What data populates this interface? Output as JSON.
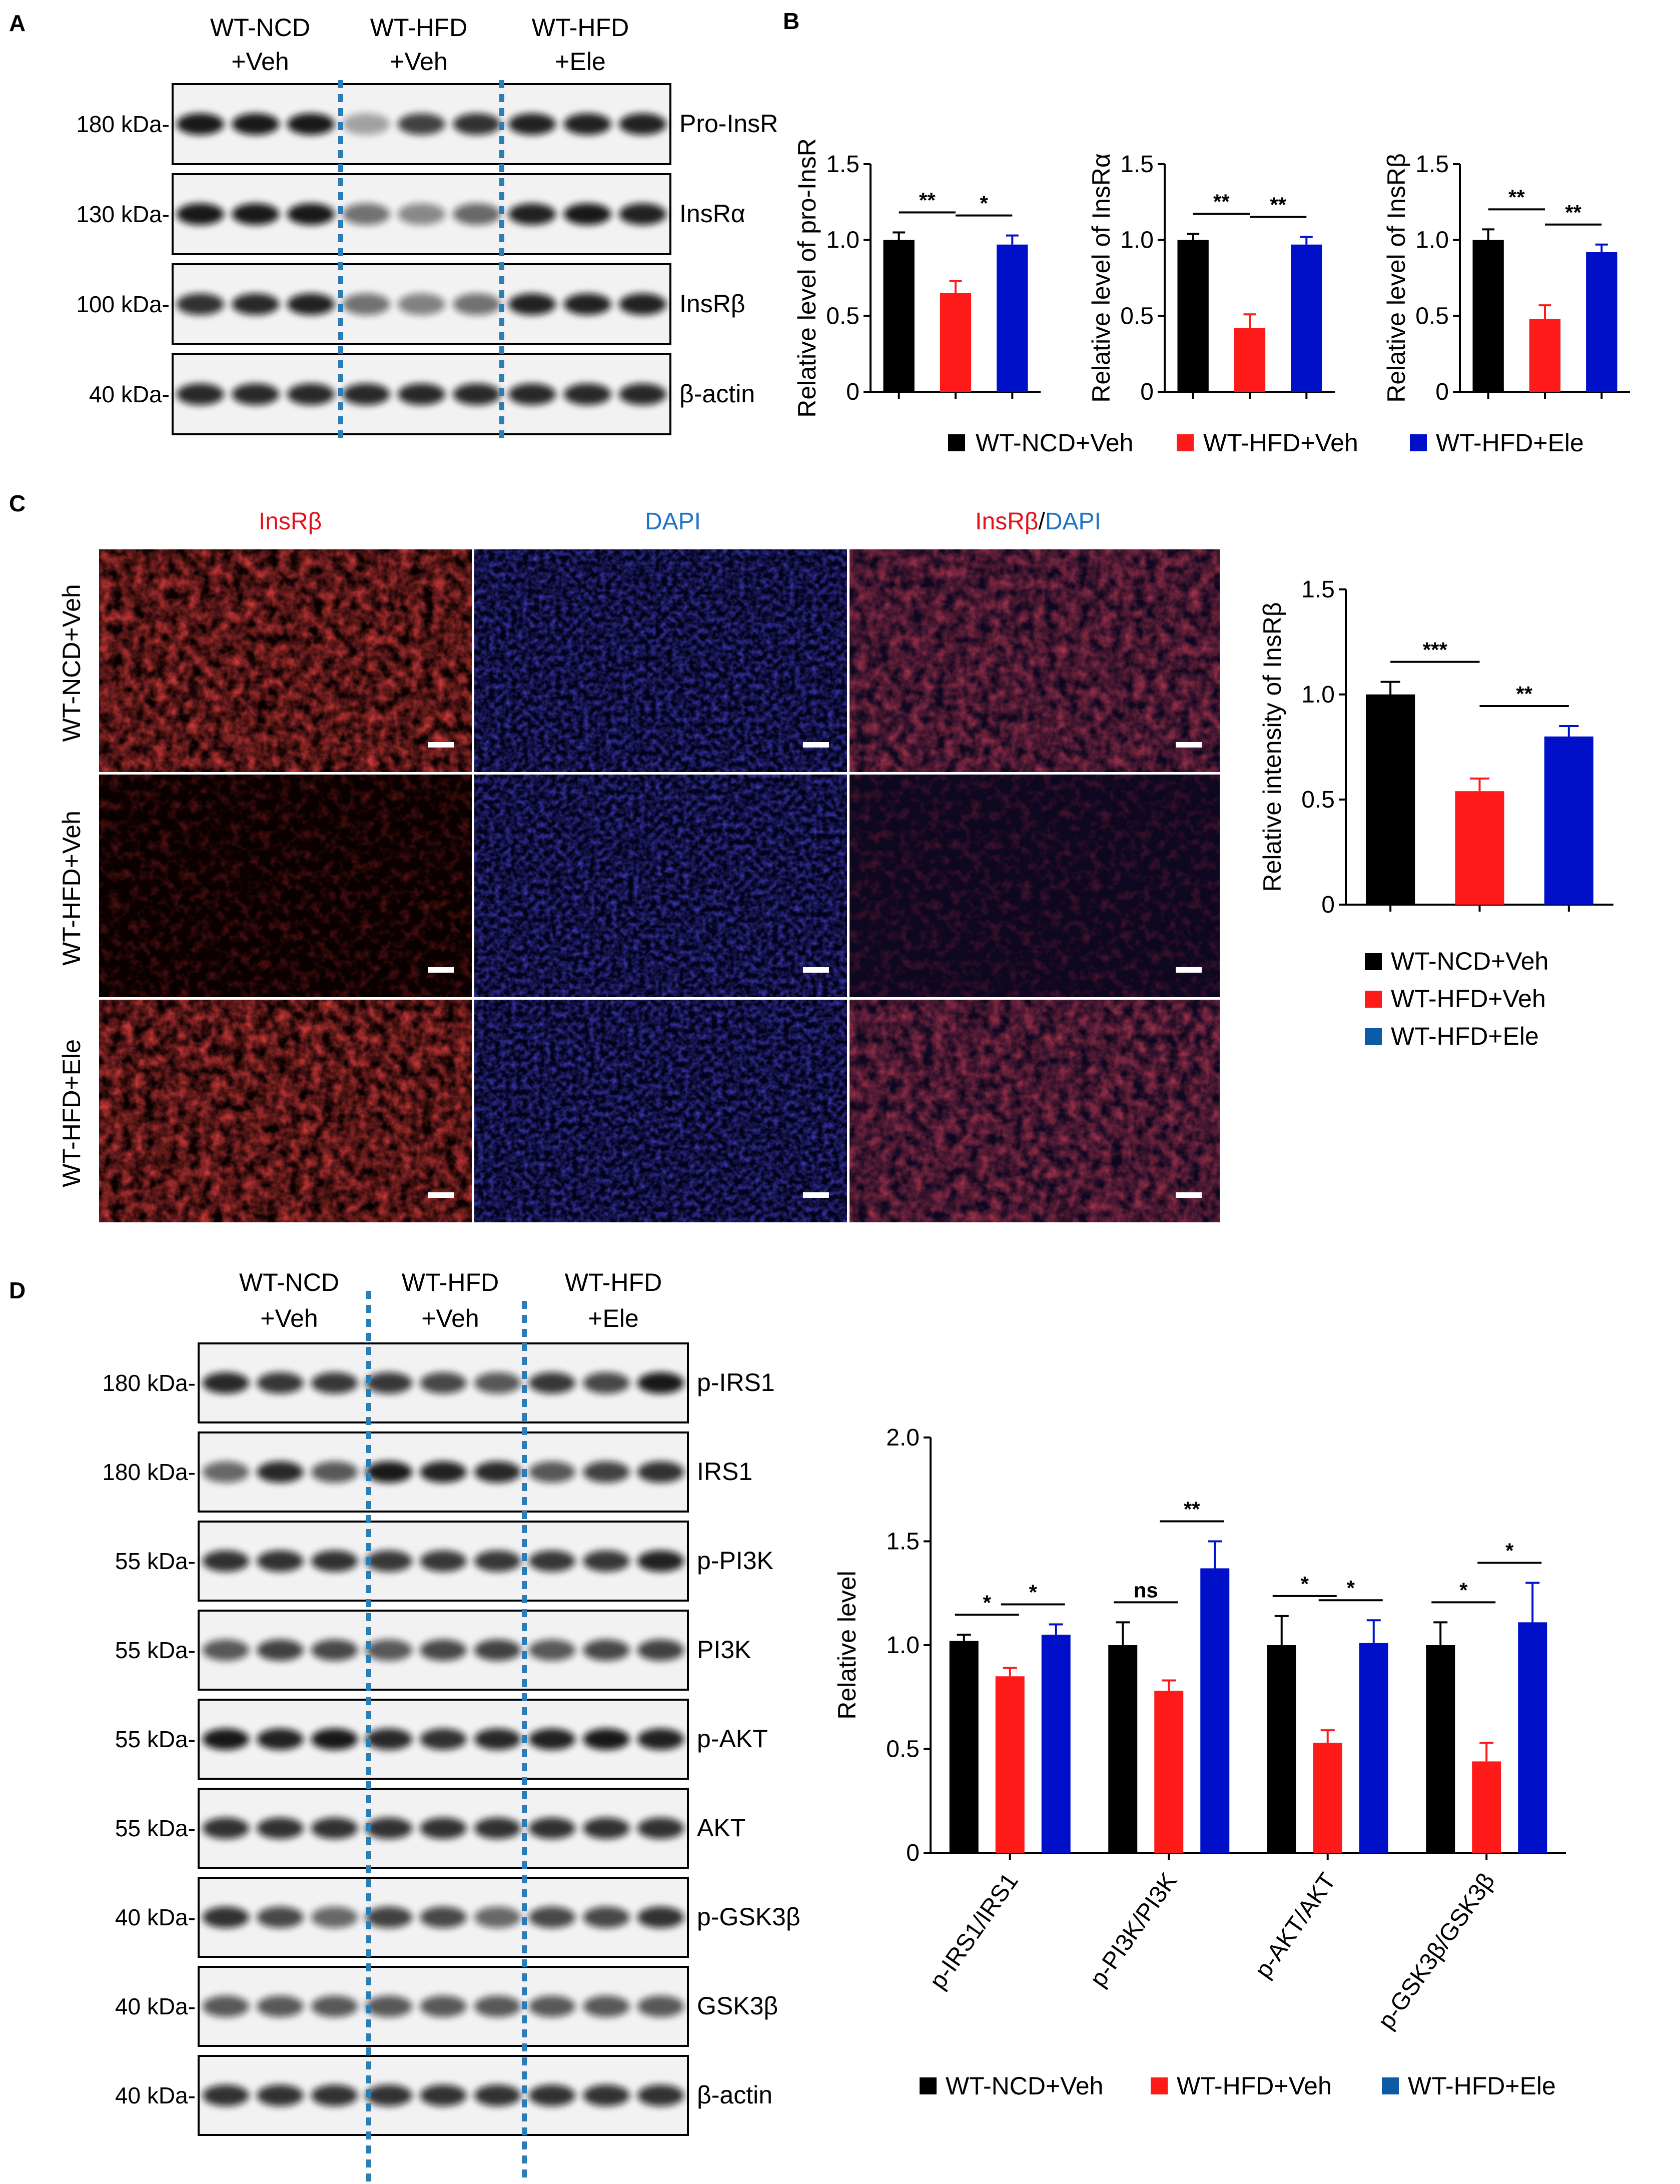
{
  "panels": {
    "A": "A",
    "B": "B",
    "C": "C",
    "D": "D"
  },
  "groups": [
    "WT-NCD\n+Veh",
    "WT-HFD\n+Veh",
    "WT-HFD\n+Ele"
  ],
  "group_labels": {
    "g1l1": "WT-NCD",
    "g1l2": "+Veh",
    "g2l1": "WT-HFD",
    "g2l2": "+Veh",
    "g3l1": "WT-HFD",
    "g3l2": "+Ele"
  },
  "legend": {
    "ncd": "WT-NCD+Veh",
    "hfd": "WT-HFD+Veh",
    "ele": "WT-HFD+Ele"
  },
  "colors": {
    "ncd": "#000000",
    "hfd": "#ff1a1a",
    "ele": "#0010c8",
    "divider": "#2a7db5"
  },
  "blotA": [
    {
      "protein": "Pro-InsR",
      "kda": "180 kDa-"
    },
    {
      "protein": "InsRα",
      "kda": "130 kDa-"
    },
    {
      "protein": "InsRβ",
      "kda": "100 kDa-"
    },
    {
      "protein": "β-actin",
      "kda": "40 kDa-"
    }
  ],
  "blotD": [
    {
      "protein": "p-IRS1",
      "kda": "180 kDa-"
    },
    {
      "protein": "IRS1",
      "kda": "180 kDa-"
    },
    {
      "protein": "p-PI3K",
      "kda": "55 kDa-"
    },
    {
      "protein": "PI3K",
      "kda": "55 kDa-"
    },
    {
      "protein": "p-AKT",
      "kda": "55 kDa-"
    },
    {
      "protein": "AKT",
      "kda": "55 kDa-"
    },
    {
      "protein": "p-GSK3β",
      "kda": "40 kDa-"
    },
    {
      "protein": "GSK3β",
      "kda": "40 kDa-"
    },
    {
      "protein": "β-actin",
      "kda": "40 kDa-"
    }
  ],
  "micro": {
    "col_titles": {
      "insr": "InsRβ",
      "dapi": "DAPI",
      "merge_a": "InsRβ",
      "merge_sep": "/",
      "merge_b": "DAPI"
    },
    "rows": [
      "WT-NCD+Veh",
      "WT-HFD+Veh",
      "WT-HFD+Ele"
    ]
  },
  "chart_data": [
    {
      "type": "bar",
      "panel": "B",
      "ylabel": "Relative level of pro-InsR",
      "ylim": [
        0,
        1.5
      ],
      "yticks": [
        "0",
        "0.5",
        "1.0",
        "1.5"
      ],
      "categories": [
        "WT-NCD+Veh",
        "WT-HFD+Veh",
        "WT-HFD+Ele"
      ],
      "values": [
        1.0,
        0.65,
        0.97
      ],
      "errors": [
        0.05,
        0.08,
        0.06
      ],
      "significance": [
        "**",
        "*"
      ]
    },
    {
      "type": "bar",
      "panel": "B",
      "ylabel": "Relative level of InsRα",
      "ylim": [
        0,
        1.5
      ],
      "yticks": [
        "0",
        "0.5",
        "1.0",
        "1.5"
      ],
      "categories": [
        "WT-NCD+Veh",
        "WT-HFD+Veh",
        "WT-HFD+Ele"
      ],
      "values": [
        1.0,
        0.42,
        0.97
      ],
      "errors": [
        0.04,
        0.09,
        0.05
      ],
      "significance": [
        "**",
        "**"
      ]
    },
    {
      "type": "bar",
      "panel": "B",
      "ylabel": "Relative level of InsRβ",
      "ylim": [
        0,
        1.5
      ],
      "yticks": [
        "0",
        "0.5",
        "1.0",
        "1.5"
      ],
      "categories": [
        "WT-NCD+Veh",
        "WT-HFD+Veh",
        "WT-HFD+Ele"
      ],
      "values": [
        1.0,
        0.48,
        0.92
      ],
      "errors": [
        0.07,
        0.09,
        0.05
      ],
      "significance": [
        "**",
        "**"
      ]
    },
    {
      "type": "bar",
      "panel": "C",
      "ylabel": "Relative intensity of InsRβ",
      "ylim": [
        0,
        1.5
      ],
      "yticks": [
        "0",
        "0.5",
        "1.0",
        "1.5"
      ],
      "categories": [
        "WT-NCD+Veh",
        "WT-HFD+Veh",
        "WT-HFD+Ele"
      ],
      "values": [
        1.0,
        0.54,
        0.8
      ],
      "errors": [
        0.06,
        0.06,
        0.05
      ],
      "significance": [
        "***",
        "**"
      ]
    },
    {
      "type": "bar",
      "panel": "D",
      "ylabel": "Relative level",
      "ylim": [
        0,
        2.0
      ],
      "yticks": [
        "0",
        "0.5",
        "1.0",
        "1.5",
        "2.0"
      ],
      "categories": [
        "p-IRS1/IRS1",
        "p-PI3K/PI3K",
        "p-AKT/AKT",
        "p-GSK3β/GSK3β"
      ],
      "series": [
        {
          "name": "WT-NCD+Veh",
          "values": [
            1.02,
            1.0,
            1.0,
            1.0
          ],
          "errors": [
            0.03,
            0.11,
            0.14,
            0.11
          ]
        },
        {
          "name": "WT-HFD+Veh",
          "values": [
            0.85,
            0.78,
            0.53,
            0.44
          ],
          "errors": [
            0.04,
            0.05,
            0.06,
            0.09
          ]
        },
        {
          "name": "WT-HFD+Ele",
          "values": [
            1.05,
            1.37,
            1.01,
            1.11
          ],
          "errors": [
            0.05,
            0.13,
            0.11,
            0.19
          ]
        }
      ],
      "significance": [
        [
          "*",
          "*"
        ],
        [
          "ns",
          "**"
        ],
        [
          "*",
          "*"
        ],
        [
          "*",
          "*"
        ]
      ]
    }
  ]
}
